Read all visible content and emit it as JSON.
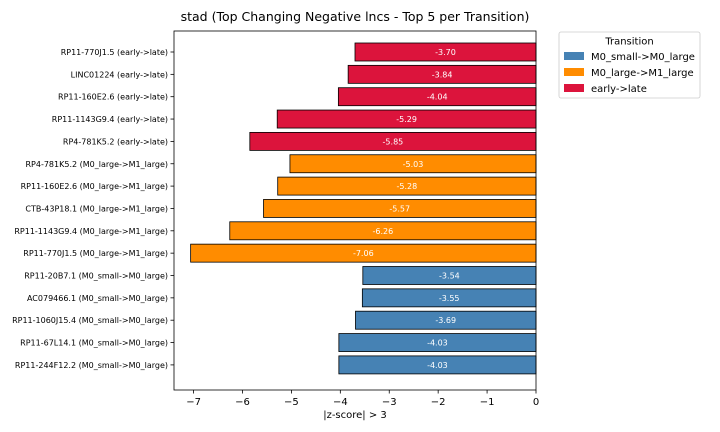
{
  "chart_data": {
    "type": "bar",
    "orientation": "horizontal",
    "title": "stad (Top Changing Negative lncs - Top 5 per Transition)",
    "xlabel": "|z-score| > 3",
    "xlim": [
      -7.4,
      0
    ],
    "xticks": [
      -7,
      -6,
      -5,
      -4,
      -3,
      -2,
      -1,
      0
    ],
    "grid": false,
    "legend": {
      "title": "Transition",
      "placement": "outside-top-right",
      "entries": [
        {
          "name": "M0_small->M0_large",
          "color": "#4682b4"
        },
        {
          "name": "M0_large->M1_large",
          "color": "#ff8c00"
        },
        {
          "name": "early->late",
          "color": "#dc143c"
        }
      ]
    },
    "bars": [
      {
        "label": "RP11-770J1.5 (early->late)",
        "value": -3.7,
        "value_label": "-3.70",
        "group": "early->late"
      },
      {
        "label": "LINC01224 (early->late)",
        "value": -3.84,
        "value_label": "-3.84",
        "group": "early->late"
      },
      {
        "label": "RP11-160E2.6 (early->late)",
        "value": -4.04,
        "value_label": "-4.04",
        "group": "early->late"
      },
      {
        "label": "RP11-1143G9.4 (early->late)",
        "value": -5.29,
        "value_label": "-5.29",
        "group": "early->late"
      },
      {
        "label": "RP4-781K5.2 (early->late)",
        "value": -5.85,
        "value_label": "-5.85",
        "group": "early->late"
      },
      {
        "label": "RP4-781K5.2 (M0_large->M1_large)",
        "value": -5.03,
        "value_label": "-5.03",
        "group": "M0_large->M1_large"
      },
      {
        "label": "RP11-160E2.6 (M0_large->M1_large)",
        "value": -5.28,
        "value_label": "-5.28",
        "group": "M0_large->M1_large"
      },
      {
        "label": "CTB-43P18.1 (M0_large->M1_large)",
        "value": -5.57,
        "value_label": "-5.57",
        "group": "M0_large->M1_large"
      },
      {
        "label": "RP11-1143G9.4 (M0_large->M1_large)",
        "value": -6.26,
        "value_label": "-6.26",
        "group": "M0_large->M1_large"
      },
      {
        "label": "RP11-770J1.5 (M0_large->M1_large)",
        "value": -7.06,
        "value_label": "-7.06",
        "group": "M0_large->M1_large"
      },
      {
        "label": "RP11-20B7.1 (M0_small->M0_large)",
        "value": -3.54,
        "value_label": "-3.54",
        "group": "M0_small->M0_large"
      },
      {
        "label": "AC079466.1 (M0_small->M0_large)",
        "value": -3.55,
        "value_label": "-3.55",
        "group": "M0_small->M0_large"
      },
      {
        "label": "RP11-1060J15.4 (M0_small->M0_large)",
        "value": -3.69,
        "value_label": "-3.69",
        "group": "M0_small->M0_large"
      },
      {
        "label": "RP11-67L14.1 (M0_small->M0_large)",
        "value": -4.03,
        "value_label": "-4.03",
        "group": "M0_small->M0_large"
      },
      {
        "label": "RP11-244F12.2 (M0_small->M0_large)",
        "value": -4.03,
        "value_label": "-4.03",
        "group": "M0_small->M0_large"
      }
    ]
  }
}
